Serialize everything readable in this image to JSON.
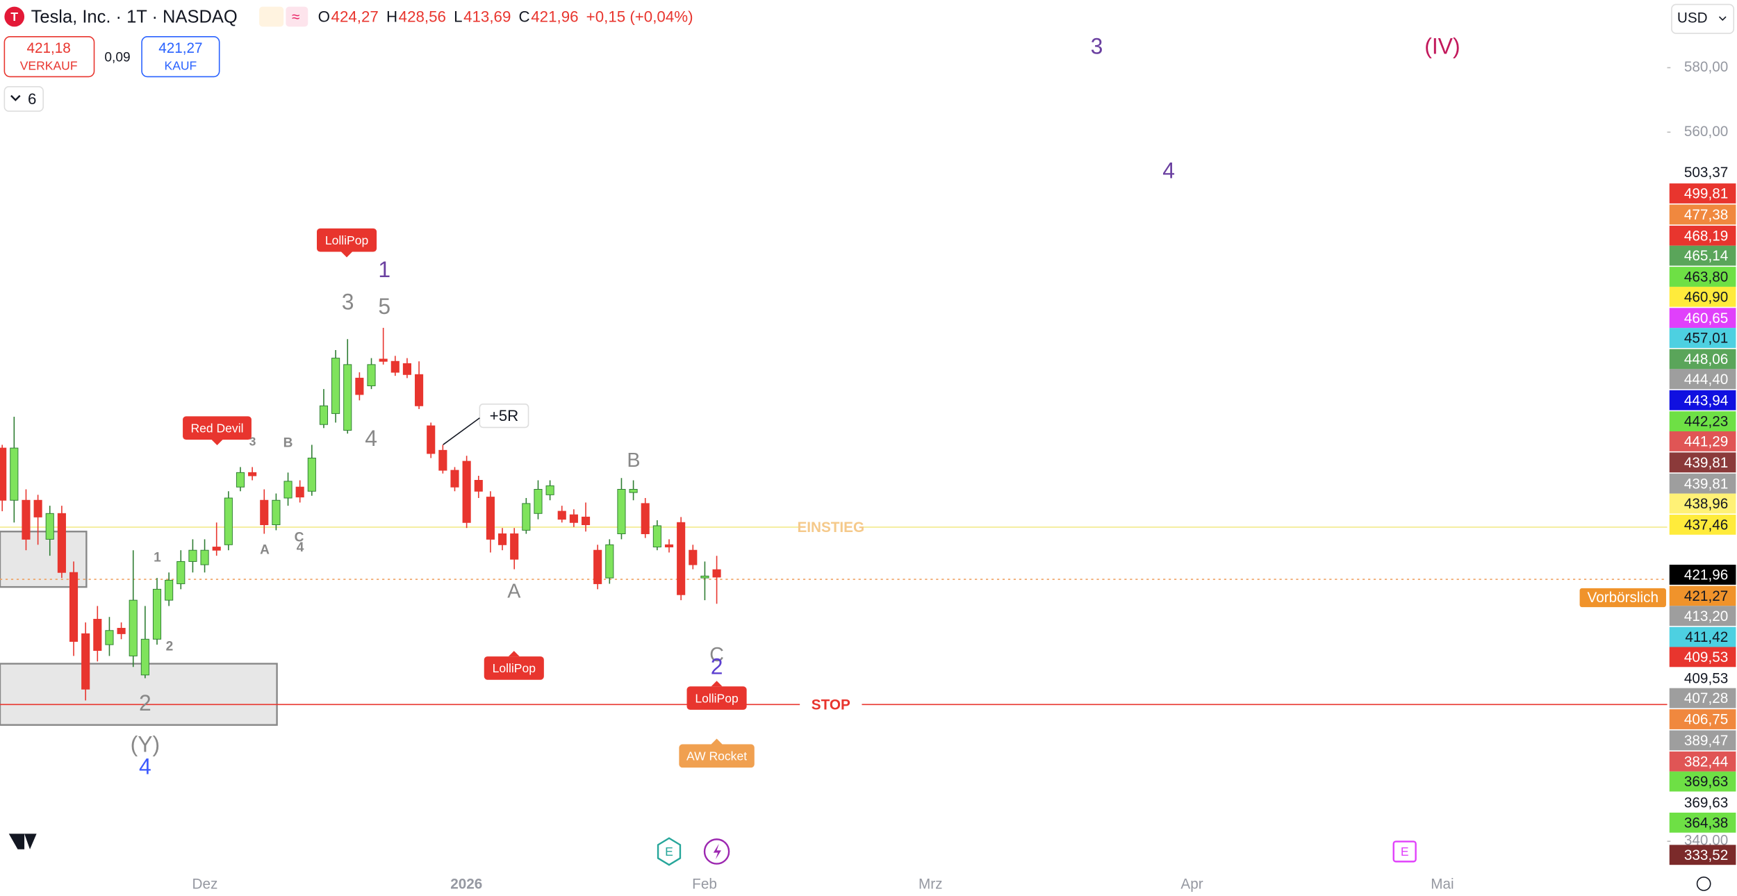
{
  "header": {
    "symbol": "Tesla, Inc. · 1T · NASDAQ",
    "ohlc": [
      {
        "key": "O",
        "value": "424,27"
      },
      {
        "key": "H",
        "value": "428,56"
      },
      {
        "key": "L",
        "value": "413,69"
      },
      {
        "key": "C",
        "value": "421,96"
      }
    ],
    "change": "+0,15 (+0,04%)"
  },
  "trade": {
    "sell_price": "421,18",
    "sell": "VERKAUF",
    "spread": "0,09",
    "buy_price": "421,27",
    "buy": "KAUF"
  },
  "indicator_count": "6",
  "currency": "USD",
  "chart_data": {
    "type": "candlestick",
    "open": [
      462.0,
      445.8,
      445.8,
      445.8,
      433.7,
      441.7,
      423.4,
      404.4,
      408.9,
      401.0,
      406.1,
      397.5,
      391.6,
      402.7,
      414.8,
      419.9,
      426.8,
      425.8,
      431.3,
      432.0,
      449.9,
      454.4,
      445.8,
      438.2,
      446.5,
      449.9,
      448.6,
      469.3,
      472.7,
      467.5,
      483.7,
      481.3,
      489.6,
      488.9,
      488.2,
      484.8,
      468.9,
      461.3,
      455.1,
      457.9,
      452.0,
      446.8,
      435.4,
      435.4,
      436.5,
      441.7,
      447.5,
      442.4,
      441.3,
      440.6,
      430.3,
      421.7,
      435.4,
      448.2,
      444.8,
      431.3,
      432.0,
      438.9,
      430.3,
      421.7,
      424.27
    ],
    "high": [
      463.0,
      471.7,
      449.2,
      447.5,
      444.1,
      444.1,
      426.8,
      407.9,
      413.0,
      409.6,
      407.9,
      430.3,
      413.0,
      421.7,
      423.4,
      430.3,
      433.7,
      433.7,
      438.9,
      448.6,
      456.1,
      456.1,
      449.2,
      447.9,
      454.4,
      452.0,
      463.0,
      480.3,
      492.4,
      495.8,
      485.5,
      489.9,
      499.3,
      490.6,
      489.9,
      488.9,
      469.9,
      463.0,
      456.1,
      459.6,
      453.4,
      448.6,
      437.2,
      437.2,
      446.5,
      452.0,
      452.0,
      444.1,
      443.0,
      445.1,
      432.0,
      433.7,
      452.7,
      452.0,
      446.5,
      439.6,
      433.7,
      440.6,
      432.0,
      426.8,
      428.56
    ],
    "low": [
      442.4,
      438.9,
      430.3,
      432.0,
      428.6,
      421.7,
      397.5,
      383.7,
      395.8,
      397.5,
      402.7,
      394.1,
      390.6,
      401.0,
      413.0,
      418.2,
      423.4,
      423.4,
      428.6,
      430.3,
      448.6,
      452.0,
      435.4,
      436.5,
      444.1,
      445.1,
      447.2,
      468.2,
      469.9,
      466.5,
      476.8,
      480.3,
      487.9,
      484.4,
      483.7,
      474.1,
      458.9,
      454.1,
      448.6,
      437.2,
      446.5,
      429.6,
      430.3,
      424.4,
      435.4,
      439.9,
      445.8,
      438.9,
      437.5,
      436.1,
      418.2,
      419.9,
      433.7,
      445.8,
      434.1,
      430.3,
      429.6,
      414.8,
      424.4,
      414.8,
      413.69
    ],
    "close": [
      445.8,
      462.0,
      433.7,
      440.6,
      441.7,
      423.4,
      402.0,
      387.2,
      399.2,
      405.4,
      404.4,
      414.8,
      402.7,
      418.2,
      421.0,
      426.8,
      430.3,
      430.3,
      430.3,
      446.5,
      454.4,
      453.4,
      438.2,
      445.8,
      451.7,
      446.8,
      458.9,
      475.1,
      489.9,
      487.9,
      478.6,
      487.9,
      488.9,
      485.5,
      484.8,
      475.1,
      460.3,
      455.1,
      449.9,
      438.9,
      448.6,
      433.7,
      432.0,
      427.5,
      444.8,
      449.2,
      450.3,
      439.9,
      438.9,
      438.2,
      419.9,
      432.0,
      449.2,
      449.2,
      435.4,
      437.9,
      431.3,
      416.5,
      425.8,
      422.3,
      421.96
    ],
    "up_color": "#7fe35c",
    "down_color": "#e8352e",
    "ylim": [
      332,
      601
    ],
    "yticks": [
      {
        "value": 580,
        "label": "580,00"
      },
      {
        "value": 560,
        "label": "560,00"
      },
      {
        "value": 340,
        "label": "340,00"
      }
    ],
    "xlabels": [
      "Dez",
      "2026",
      "Feb",
      "Mrz",
      "Apr",
      "Mai"
    ],
    "lines": [
      {
        "label": "EINSTIEG",
        "value": 437.46,
        "color": "#f2ea8c",
        "label_color": "#f5c98a"
      },
      {
        "label": "STOP",
        "value": 382.44,
        "color": "#e8352e",
        "label_color": "#e8352e"
      },
      {
        "label": "Vorbörslich",
        "value": 421.27,
        "color": "#f0a060",
        "label_color": "#f0932b"
      }
    ],
    "zones": [
      {
        "top": 436.1,
        "bottom": 418.9
      },
      {
        "top": 395.1,
        "bottom": 376.1
      }
    ],
    "annotations": [
      {
        "text": "3",
        "color": "#6a3fa0"
      },
      {
        "text": "(IV)",
        "color": "#c2185b"
      },
      {
        "text": "4",
        "color": "#6a3fa0"
      },
      {
        "text": "1",
        "color": "#6a3fa0"
      },
      {
        "text": "3",
        "color": "#888"
      },
      {
        "text": "5",
        "color": "#888"
      },
      {
        "text": "4",
        "color": "#888"
      },
      {
        "text": "B",
        "color": "#888"
      },
      {
        "text": "3",
        "color": "#888"
      },
      {
        "text": "1",
        "color": "#888"
      },
      {
        "text": "2",
        "color": "#888"
      },
      {
        "text": "A",
        "color": "#888"
      },
      {
        "text": "C",
        "color": "#888"
      },
      {
        "text": "4",
        "color": "#888"
      },
      {
        "text": "2",
        "color": "#888"
      },
      {
        "text": "(Y)",
        "color": "#888"
      },
      {
        "text": "4",
        "color": "#3d5afe"
      },
      {
        "text": "A",
        "color": "#888"
      },
      {
        "text": "B",
        "color": "#888"
      },
      {
        "text": "C",
        "color": "#888"
      },
      {
        "text": "2",
        "color": "#5c3fd0"
      }
    ],
    "tags": [
      {
        "text": "LolliPop",
        "color": "#e8352e"
      },
      {
        "text": "Red Devil",
        "color": "#e8352e"
      },
      {
        "text": "LolliPop",
        "color": "#e8352e"
      },
      {
        "text": "LolliPop",
        "color": "#e8352e"
      },
      {
        "text": "AW Rocket",
        "color": "#f0a050"
      },
      {
        "text": "+5R",
        "color": "#ffffff"
      }
    ],
    "price_labels": [
      {
        "label": "503,37",
        "color": "#ffffff"
      },
      {
        "label": "499,81",
        "color": "#e8352e"
      },
      {
        "label": "477,38",
        "color": "#f0883e"
      },
      {
        "label": "468,19",
        "color": "#e8352e"
      },
      {
        "label": "465,14",
        "color": "#5aa55a"
      },
      {
        "label": "463,80",
        "color": "#6ee045"
      },
      {
        "label": "460,90",
        "color": "#ffeb3b"
      },
      {
        "label": "460,65",
        "color": "#e040fb"
      },
      {
        "label": "457,01",
        "color": "#4dd0e1"
      },
      {
        "label": "448,06",
        "color": "#5aa55a"
      },
      {
        "label": "444,40",
        "color": "#9e9e9e"
      },
      {
        "label": "443,94",
        "color": "#1010e0"
      },
      {
        "label": "442,23",
        "color": "#6ee045"
      },
      {
        "label": "441,29",
        "color": "#e05555"
      },
      {
        "label": "439,81",
        "color": "#8b3a3a"
      },
      {
        "label": "439,81",
        "color": "#9e9e9e"
      },
      {
        "label": "438,96",
        "color": "#fff176"
      },
      {
        "label": "437,46",
        "color": "#ffeb3b"
      },
      {
        "label": "421,96",
        "color": "#000000"
      },
      {
        "label": "421,27",
        "color": "#f0932b"
      },
      {
        "label": "413,20",
        "color": "#9e9e9e"
      },
      {
        "label": "411,42",
        "color": "#4dd0e1"
      },
      {
        "label": "409,53",
        "color": "#e8352e"
      },
      {
        "label": "409,53",
        "color": "#ffffff"
      },
      {
        "label": "407,28",
        "color": "#9e9e9e"
      },
      {
        "label": "406,75",
        "color": "#f0883e"
      },
      {
        "label": "389,47",
        "color": "#9e9e9e"
      },
      {
        "label": "382,44",
        "color": "#e05555"
      },
      {
        "label": "369,63",
        "color": "#6ee045"
      },
      {
        "label": "369,63",
        "color": "#ffffff"
      },
      {
        "label": "364,38",
        "color": "#6ee045"
      },
      {
        "label": "333,52",
        "color": "#7b2a2a"
      }
    ]
  }
}
